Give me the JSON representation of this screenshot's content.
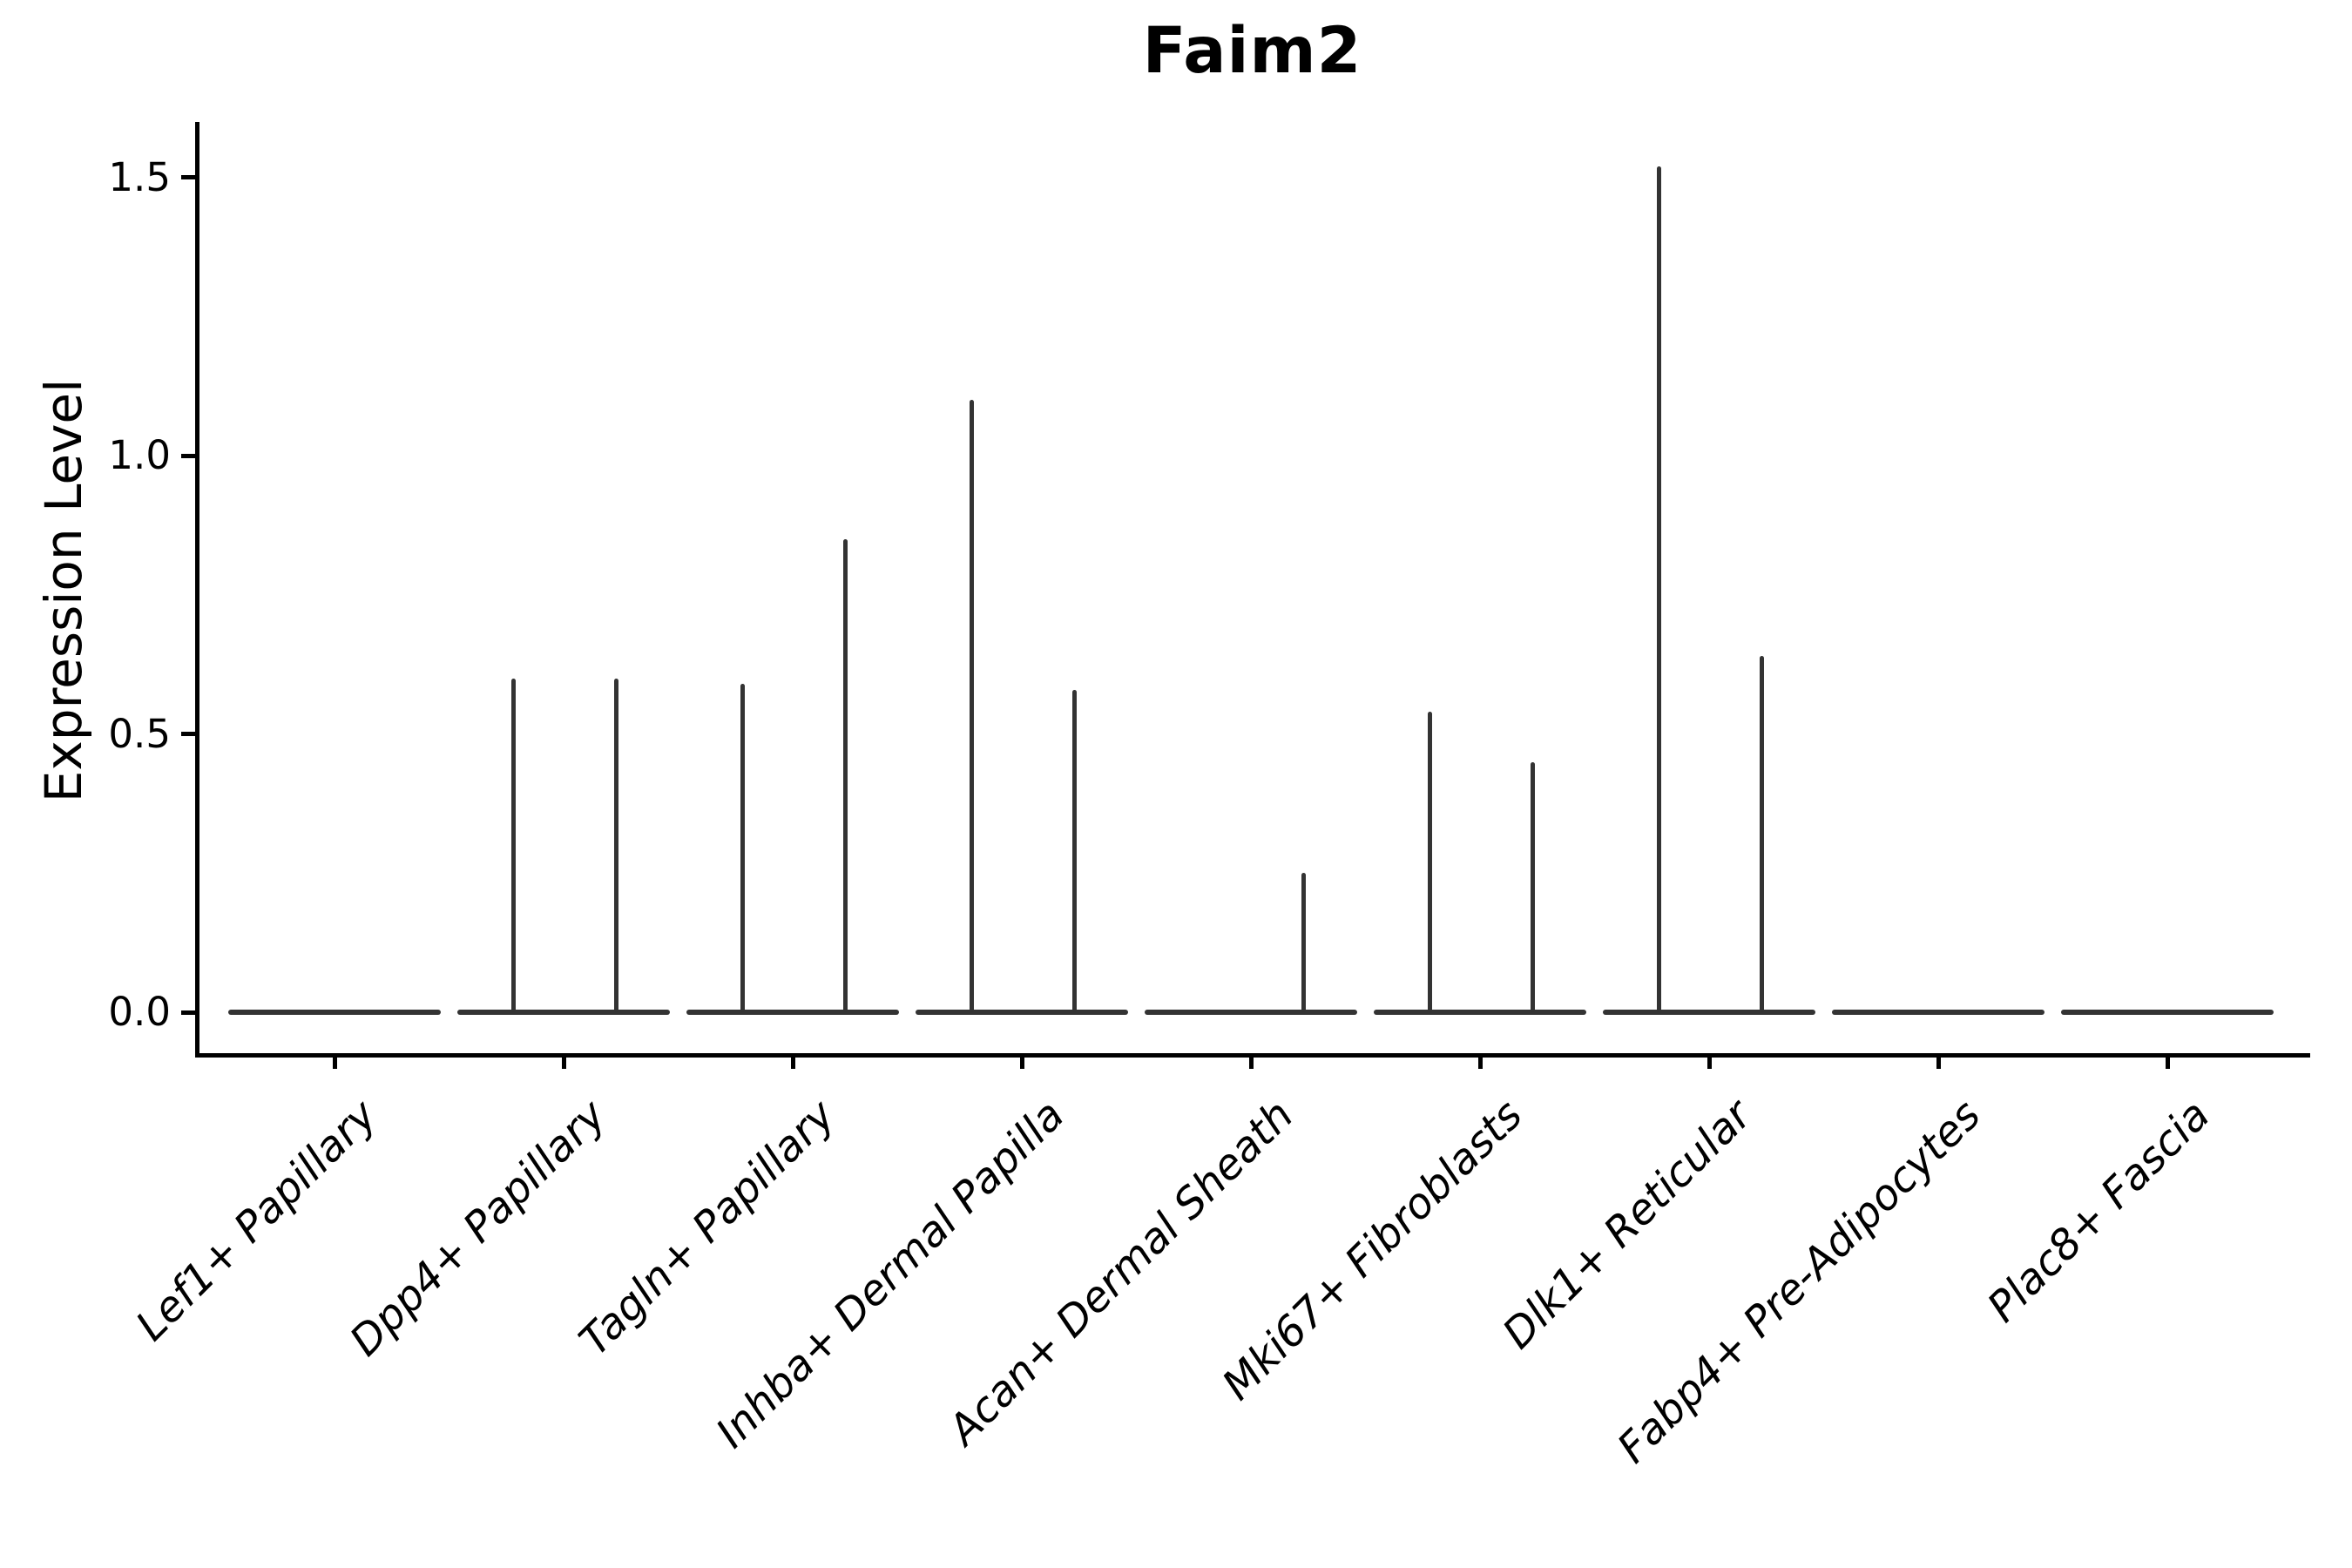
{
  "figure": {
    "background": "#ffffff",
    "text_color": "#000000",
    "spine_color": "#000000",
    "violin_color": "#333333"
  },
  "chart_data": {
    "type": "violin",
    "title": "Faim2",
    "xlabel": "",
    "ylabel": "Expression Level",
    "ylim": [
      -0.07,
      1.6
    ],
    "yticks": [
      0.0,
      0.5,
      1.0,
      1.5
    ],
    "ytick_labels": [
      "0.0",
      "0.5",
      "1.0",
      "1.5"
    ],
    "grid": false,
    "legend": false,
    "categories": [
      "Lef1+ Papillary",
      "Dpp4+ Papillary",
      "Tagln+ Papillary",
      "Inhba+ Dermal Papilla",
      "Acan+ Dermal Sheath",
      "Mki67+ Fibroblasts",
      "Dlk1+ Reticular",
      "Fabp4+ Pre-Adipocytes",
      "Plac8+ Fascia"
    ],
    "series": [
      {
        "category": "Lef1+ Papillary",
        "baseline_value": 0,
        "spikes": []
      },
      {
        "category": "Dpp4+ Papillary",
        "baseline_value": 0,
        "spikes": [
          {
            "side": "left",
            "value": 0.6
          },
          {
            "side": "right",
            "value": 0.6
          }
        ]
      },
      {
        "category": "Tagln+ Papillary",
        "baseline_value": 0,
        "spikes": [
          {
            "side": "left",
            "value": 0.59
          },
          {
            "side": "right",
            "value": 0.85
          }
        ]
      },
      {
        "category": "Inhba+ Dermal Papilla",
        "baseline_value": 0,
        "spikes": [
          {
            "side": "left",
            "value": 1.1
          },
          {
            "side": "right",
            "value": 0.58
          }
        ]
      },
      {
        "category": "Acan+ Dermal Sheath",
        "baseline_value": 0,
        "spikes": [
          {
            "side": "right",
            "value": 0.25
          }
        ]
      },
      {
        "category": "Mki67+ Fibroblasts",
        "baseline_value": 0,
        "spikes": [
          {
            "side": "left",
            "value": 0.54
          },
          {
            "side": "right",
            "value": 0.45
          }
        ]
      },
      {
        "category": "Dlk1+ Reticular",
        "baseline_value": 0,
        "spikes": [
          {
            "side": "left",
            "value": 1.52
          },
          {
            "side": "right",
            "value": 0.64
          }
        ]
      },
      {
        "category": "Fabp4+ Pre-Adipocytes",
        "baseline_value": 0,
        "spikes": []
      },
      {
        "category": "Plac8+ Fascia",
        "baseline_value": 0,
        "spikes": []
      }
    ]
  }
}
